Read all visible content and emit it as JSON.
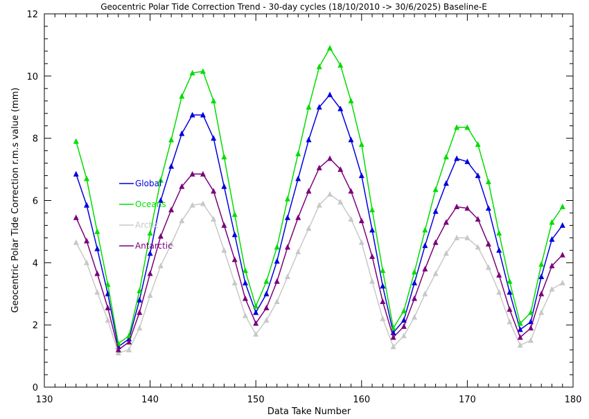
{
  "chart_data": {
    "type": "line",
    "title": "Geocentric Polar Tide Correction Trend - 30-day cycles (18/10/2010 -> 30/6/2025) Baseline-E",
    "xlabel": "Data Take Number",
    "ylabel": "Geocentric Polar Tide Correction r.m.s value (mm)",
    "xlim": [
      130,
      180
    ],
    "ylim": [
      0,
      12
    ],
    "x_ticks": [
      "130",
      "140",
      "150",
      "160",
      "170",
      "180"
    ],
    "y_ticks": [
      "0",
      "2",
      "4",
      "6",
      "8",
      "10",
      "12"
    ],
    "grid": false,
    "legend_position": "left, inside plot",
    "marker": "triangle",
    "x": [
      133,
      134,
      135,
      136,
      137,
      138,
      139,
      140,
      141,
      142,
      143,
      144,
      145,
      146,
      147,
      148,
      149,
      150,
      151,
      152,
      153,
      154,
      155,
      156,
      157,
      158,
      159,
      160,
      161,
      162,
      163,
      164,
      165,
      166,
      167,
      168,
      169,
      170,
      171,
      172,
      173,
      174,
      175,
      176,
      177,
      178,
      179
    ],
    "series": [
      {
        "name": "Global",
        "color": "#0000dd",
        "values": [
          6.85,
          5.85,
          4.45,
          3.0,
          1.3,
          1.55,
          2.8,
          4.3,
          6.0,
          7.1,
          8.15,
          8.75,
          8.75,
          8.0,
          6.45,
          4.9,
          3.35,
          2.4,
          3.0,
          4.05,
          5.45,
          6.7,
          7.95,
          9.0,
          9.4,
          8.95,
          7.95,
          6.8,
          5.05,
          3.25,
          1.75,
          2.15,
          3.35,
          4.55,
          5.65,
          6.55,
          7.35,
          7.25,
          6.8,
          5.75,
          4.4,
          3.05,
          1.85,
          2.1,
          3.55,
          4.75,
          5.2
        ]
      },
      {
        "name": "Oceans",
        "color": "#00dd00",
        "values": [
          7.9,
          6.7,
          5.0,
          3.3,
          1.4,
          1.65,
          3.1,
          4.95,
          6.65,
          7.95,
          9.35,
          10.1,
          10.15,
          9.2,
          7.4,
          5.55,
          3.75,
          2.6,
          3.4,
          4.5,
          6.05,
          7.5,
          9.0,
          10.3,
          10.9,
          10.35,
          9.2,
          7.8,
          5.7,
          3.75,
          1.9,
          2.45,
          3.7,
          5.05,
          6.35,
          7.4,
          8.35,
          8.35,
          7.8,
          6.6,
          4.95,
          3.4,
          2.05,
          2.4,
          3.95,
          5.3,
          5.8
        ]
      },
      {
        "name": "Arctic",
        "color": "#c8c8c8",
        "values": [
          4.65,
          4.0,
          3.05,
          2.15,
          1.1,
          1.2,
          1.9,
          2.95,
          3.9,
          4.6,
          5.35,
          5.85,
          5.9,
          5.4,
          4.4,
          3.35,
          2.3,
          1.7,
          2.15,
          2.75,
          3.55,
          4.35,
          5.1,
          5.85,
          6.2,
          5.95,
          5.4,
          4.65,
          3.4,
          2.2,
          1.3,
          1.65,
          2.25,
          3.0,
          3.65,
          4.3,
          4.8,
          4.8,
          4.5,
          3.85,
          3.05,
          2.1,
          1.35,
          1.5,
          2.4,
          3.15,
          3.35
        ]
      },
      {
        "name": "Antarctic",
        "color": "#7a007a",
        "values": [
          5.45,
          4.7,
          3.65,
          2.55,
          1.2,
          1.45,
          2.4,
          3.65,
          4.85,
          5.7,
          6.45,
          6.85,
          6.85,
          6.3,
          5.2,
          4.1,
          2.85,
          2.05,
          2.55,
          3.4,
          4.5,
          5.45,
          6.3,
          7.05,
          7.35,
          7.0,
          6.3,
          5.35,
          4.2,
          2.75,
          1.6,
          1.95,
          2.85,
          3.8,
          4.65,
          5.3,
          5.8,
          5.75,
          5.4,
          4.6,
          3.6,
          2.5,
          1.6,
          1.9,
          3.0,
          3.9,
          4.25
        ]
      }
    ]
  }
}
